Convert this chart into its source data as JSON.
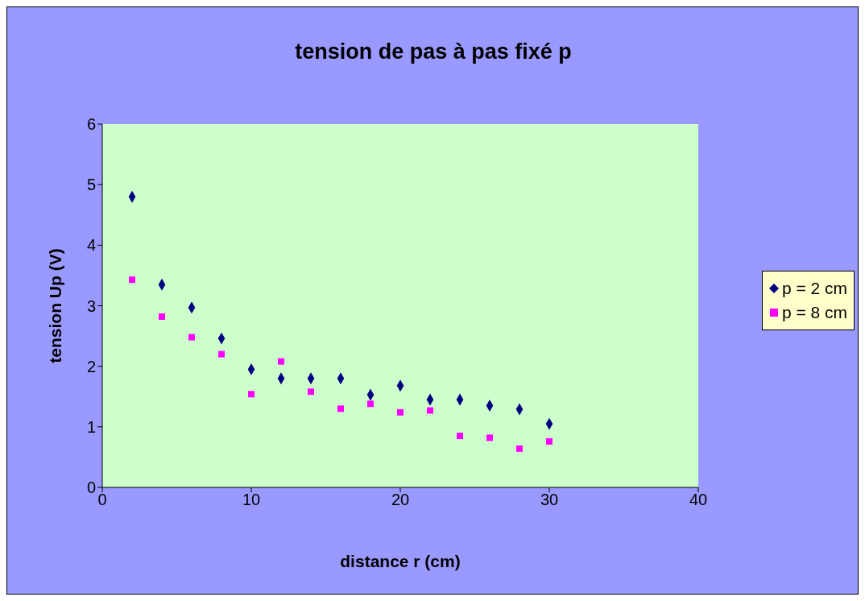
{
  "chart_data": {
    "type": "scatter",
    "title": "tension de pas à pas fixé p",
    "xlabel": "distance r (cm)",
    "ylabel": "tension Up (V)",
    "x": [
      2,
      4,
      6,
      8,
      10,
      12,
      14,
      16,
      18,
      20,
      22,
      24,
      26,
      28,
      30
    ],
    "series": [
      {
        "name": "p = 2 cm",
        "color": "#000080",
        "marker": "diamond",
        "values": [
          4.8,
          3.35,
          2.97,
          2.46,
          1.95,
          1.8,
          1.8,
          1.8,
          1.53,
          1.68,
          1.45,
          1.45,
          1.35,
          1.29,
          1.05
        ]
      },
      {
        "name": "p = 8 cm",
        "color": "#ff00ff",
        "marker": "square",
        "values": [
          3.43,
          2.82,
          2.48,
          2.2,
          1.54,
          2.08,
          1.58,
          1.3,
          1.38,
          1.24,
          1.27,
          0.85,
          0.82,
          0.64,
          0.76
        ]
      }
    ],
    "xlim": [
      0,
      40
    ],
    "xticks": [
      0,
      10,
      20,
      30,
      40
    ],
    "ylim": [
      0,
      6
    ],
    "yticks": [
      0,
      1,
      2,
      3,
      4,
      5,
      6
    ],
    "legend": "right"
  }
}
